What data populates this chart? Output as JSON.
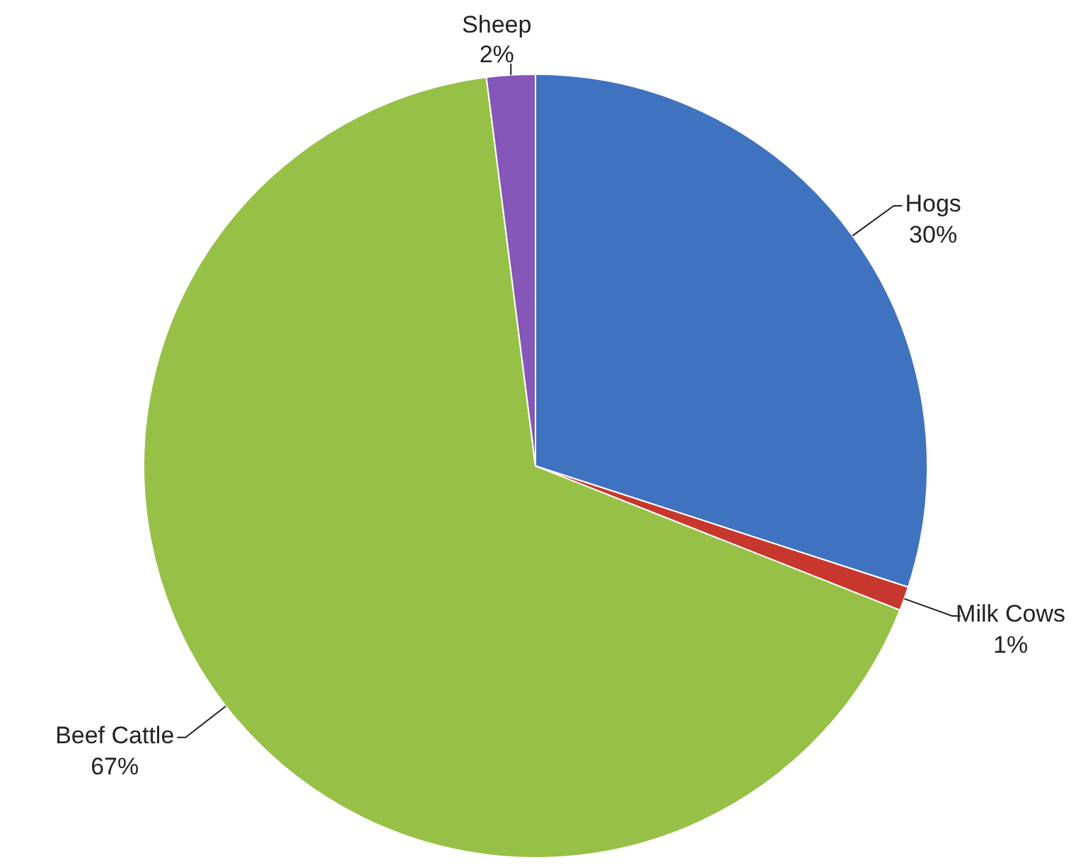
{
  "chart_data": {
    "type": "pie",
    "categories": [
      "Hogs",
      "Milk Cows",
      "Beef Cattle",
      "Sheep"
    ],
    "values": [
      30,
      1,
      67,
      2
    ],
    "colors": [
      "#3f73bf",
      "#c8372d",
      "#97c146",
      "#8557b8"
    ],
    "value_labels": [
      "30%",
      "1%",
      "67%",
      "2%"
    ]
  }
}
